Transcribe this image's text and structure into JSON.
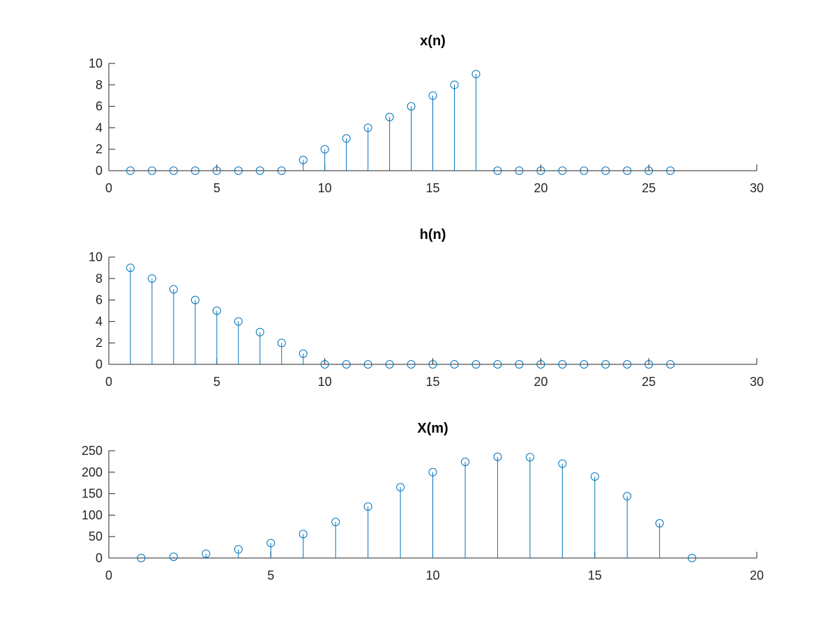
{
  "colors": {
    "stem": "#0072BD",
    "axis": "#262626",
    "background": "#ffffff"
  },
  "chart_data": [
    {
      "type": "stem",
      "title": "x(n)",
      "xlabel": "",
      "ylabel": "",
      "xlim": [
        0,
        30
      ],
      "ylim": [
        0,
        10
      ],
      "xticks": [
        0,
        5,
        10,
        15,
        20,
        25,
        30
      ],
      "yticks": [
        0,
        2,
        4,
        6,
        8,
        10
      ],
      "grid": false,
      "x": [
        1,
        2,
        3,
        4,
        5,
        6,
        7,
        8,
        9,
        10,
        11,
        12,
        13,
        14,
        15,
        16,
        17,
        18,
        19,
        20,
        21,
        22,
        23,
        24,
        25,
        26
      ],
      "values": [
        0,
        0,
        0,
        0,
        0,
        0,
        0,
        0,
        1,
        2,
        3,
        4,
        5,
        6,
        7,
        8,
        9,
        0,
        0,
        0,
        0,
        0,
        0,
        0,
        0,
        0
      ]
    },
    {
      "type": "stem",
      "title": "h(n)",
      "xlabel": "",
      "ylabel": "",
      "xlim": [
        0,
        30
      ],
      "ylim": [
        0,
        10
      ],
      "xticks": [
        0,
        5,
        10,
        15,
        20,
        25,
        30
      ],
      "yticks": [
        0,
        2,
        4,
        6,
        8,
        10
      ],
      "grid": false,
      "x": [
        1,
        2,
        3,
        4,
        5,
        6,
        7,
        8,
        9,
        10,
        11,
        12,
        13,
        14,
        15,
        16,
        17,
        18,
        19,
        20,
        21,
        22,
        23,
        24,
        25,
        26
      ],
      "values": [
        9,
        8,
        7,
        6,
        5,
        4,
        3,
        2,
        1,
        0,
        0,
        0,
        0,
        0,
        0,
        0,
        0,
        0,
        0,
        0,
        0,
        0,
        0,
        0,
        0,
        0
      ]
    },
    {
      "type": "stem",
      "title": "X(m)",
      "xlabel": "",
      "ylabel": "",
      "xlim": [
        0,
        20
      ],
      "ylim": [
        0,
        250
      ],
      "xticks": [
        0,
        5,
        10,
        15,
        20
      ],
      "yticks": [
        0,
        50,
        100,
        150,
        200,
        250
      ],
      "grid": false,
      "x": [
        1,
        2,
        3,
        4,
        5,
        6,
        7,
        8,
        9,
        10,
        11,
        12,
        13,
        14,
        15,
        16,
        17,
        18
      ],
      "values": [
        0,
        3,
        10,
        20,
        35,
        56,
        84,
        120,
        165,
        200,
        224,
        236,
        235,
        220,
        190,
        144,
        81,
        0
      ]
    }
  ]
}
